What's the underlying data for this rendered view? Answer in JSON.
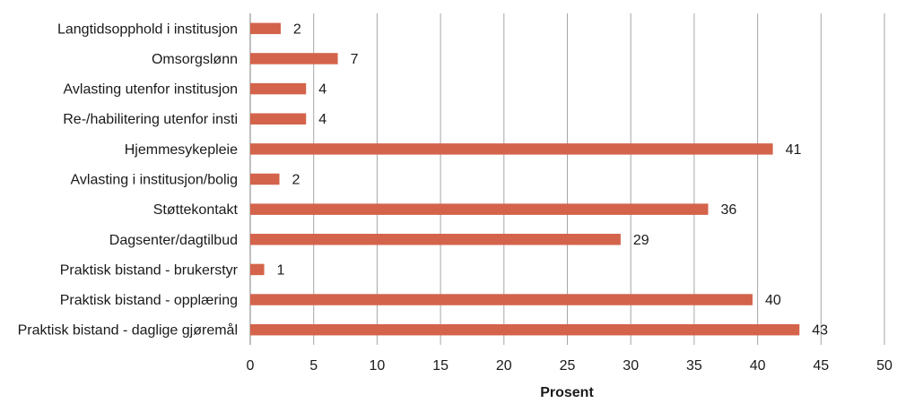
{
  "chart_data": {
    "type": "bar",
    "orientation": "horizontal",
    "categories": [
      "Langtidsopphold i institusjon",
      "Omsorgslønn",
      "Avlasting utenfor institusjon",
      "Re-/habilitering utenfor insti",
      "Hjemmesykepleie",
      "Avlasting i institusjon/bolig",
      "Støttekontakt",
      "Dagsenter/dagtilbud",
      "Praktisk bistand - brukerstyr",
      "Praktisk bistand - opplæring",
      "Praktisk bistand - daglige gjøremål"
    ],
    "values": [
      2.4,
      6.9,
      4.4,
      4.4,
      41.2,
      2.3,
      36.1,
      29.2,
      1.1,
      39.6,
      43.3
    ],
    "data_labels": [
      "2",
      "7",
      "4",
      "4",
      "41",
      "2",
      "36",
      "29",
      "1",
      "40",
      "43"
    ],
    "xlabel": "Prosent",
    "ylabel": "",
    "title": "",
    "xlim": [
      0,
      50
    ],
    "xticks": [
      "0",
      "5",
      "10",
      "15",
      "20",
      "25",
      "30",
      "35",
      "40",
      "45",
      "50"
    ],
    "grid": "vertical",
    "bar_color": "#d4634b",
    "legend": "none"
  }
}
